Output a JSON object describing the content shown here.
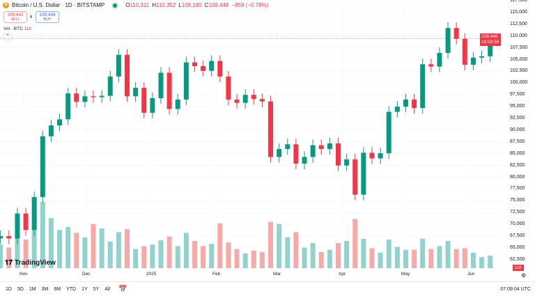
{
  "header": {
    "symbol_icon": "bitcoin-icon",
    "title": "Bitcoin / U.S. Dollar · 1D · BITSTAMP",
    "ohlc": {
      "o_label": "O",
      "o": "110,311",
      "h_label": "H",
      "h": "110,352",
      "l_label": "L",
      "l": "109,180",
      "c_label": "C",
      "c": "109,448",
      "change": "−859 (−0.78%)"
    }
  },
  "trade": {
    "sell_price": "109,442",
    "sell_label": "SELL",
    "spread": "6",
    "buy_price": "109,448",
    "buy_label": "BUY"
  },
  "volume_legend": {
    "label": "Vol · BTC",
    "value": "118"
  },
  "price_tag": {
    "price": "109,448",
    "countdown": "16:50:56"
  },
  "volume_tag": "118",
  "yaxis": [
    "117,500",
    "115,000",
    "112,500",
    "110,000",
    "107,500",
    "105,000",
    "102,500",
    "100,000",
    "97,500",
    "95,000",
    "92,500",
    "90,000",
    "87,500",
    "85,000",
    "82,500",
    "80,000",
    "77,500",
    "75,000",
    "72,500",
    "70,000",
    "67,500",
    "65,000",
    "62,500"
  ],
  "xaxis": [
    "Nov",
    "Dec",
    "2025",
    "Feb",
    "Mar",
    "Apr",
    "May",
    "Jun"
  ],
  "ranges": [
    "1D",
    "5D",
    "1M",
    "3M",
    "6M",
    "YTD",
    "1Y",
    "5Y",
    "All"
  ],
  "clock": "07:09:04 UTC",
  "logo": "TradingView",
  "colors": {
    "up": "#089981",
    "down": "#f23645",
    "vol_up": "#92d2cc",
    "vol_down": "#f7a9a7"
  },
  "chart_data": {
    "type": "candlestick",
    "ylim": [
      62500,
      117500
    ],
    "grid": true,
    "dates": [
      "2024-10-22",
      "2024-10-26",
      "2024-10-30",
      "2024-11-03",
      "2024-11-07",
      "2024-11-11",
      "2024-11-15",
      "2024-11-19",
      "2024-11-23",
      "2024-11-27",
      "2024-12-01",
      "2024-12-05",
      "2024-12-09",
      "2024-12-13",
      "2024-12-17",
      "2024-12-21",
      "2024-12-25",
      "2024-12-29",
      "2025-01-02",
      "2025-01-06",
      "2025-01-10",
      "2025-01-14",
      "2025-01-18",
      "2025-01-22",
      "2025-01-26",
      "2025-01-30",
      "2025-02-03",
      "2025-02-07",
      "2025-02-11",
      "2025-02-15",
      "2025-02-19",
      "2025-02-23",
      "2025-02-27",
      "2025-03-03",
      "2025-03-07",
      "2025-03-11",
      "2025-03-15",
      "2025-03-19",
      "2025-03-23",
      "2025-03-27",
      "2025-03-31",
      "2025-04-04",
      "2025-04-08",
      "2025-04-12",
      "2025-04-16",
      "2025-04-20",
      "2025-04-24",
      "2025-04-28",
      "2025-05-02",
      "2025-05-06",
      "2025-05-10",
      "2025-05-14",
      "2025-05-18",
      "2025-05-22",
      "2025-05-26",
      "2025-05-30",
      "2025-06-03",
      "2025-06-07",
      "2025-06-11",
      "2025-06-12"
    ],
    "close": [
      67500,
      67000,
      72300,
      68800,
      75800,
      88700,
      91000,
      92300,
      97800,
      96000,
      97200,
      97000,
      97300,
      101400,
      106000,
      97200,
      99000,
      93700,
      96800,
      102200,
      94500,
      96500,
      104400,
      103600,
      102600,
      104700,
      101400,
      96500,
      95800,
      97500,
      96600,
      96100,
      84300,
      86000,
      87000,
      82900,
      84300,
      86800,
      86000,
      87200,
      82500,
      83800,
      76300,
      85200,
      84000,
      85100,
      93900,
      95000,
      96500,
      94700,
      104000,
      103500,
      106400,
      111700,
      109400,
      103900,
      105400,
      105700,
      108600,
      109448
    ],
    "volume": [
      3200,
      2800,
      4500,
      3900,
      6500,
      9000,
      6800,
      5200,
      5600,
      4800,
      4200,
      6000,
      5400,
      3600,
      4900,
      5300,
      2600,
      3000,
      3200,
      3800,
      4300,
      3000,
      4800,
      3700,
      3000,
      3300,
      6100,
      3500,
      2600,
      2000,
      2400,
      2200,
      6300,
      6000,
      4200,
      4900,
      2800,
      3400,
      2200,
      2500,
      3400,
      3700,
      6700,
      4000,
      2700,
      2100,
      3900,
      2900,
      2500,
      2500,
      4000,
      2600,
      3000,
      3700,
      2600,
      2700,
      2100,
      1500,
      1700,
      118
    ]
  }
}
